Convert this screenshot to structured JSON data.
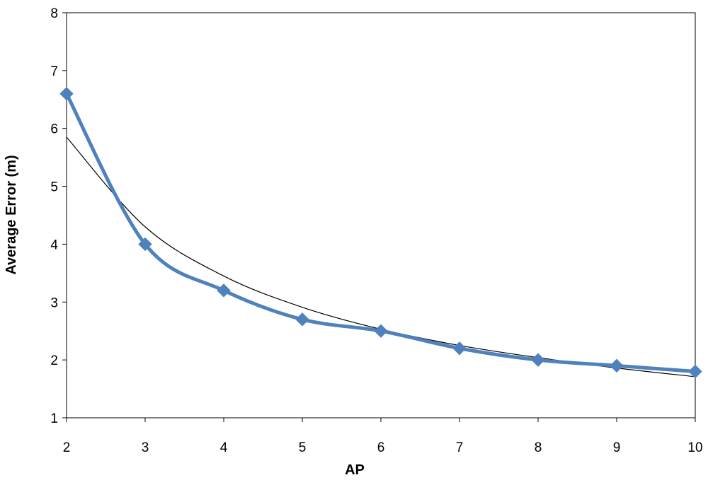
{
  "chart_data": {
    "type": "line",
    "title": "",
    "xlabel": "AP",
    "ylabel": "Average Error (m)",
    "xlim": [
      2,
      10
    ],
    "ylim": [
      1,
      8
    ],
    "x_ticks": [
      2,
      3,
      4,
      5,
      6,
      7,
      8,
      9,
      10
    ],
    "y_ticks": [
      1,
      2,
      3,
      4,
      5,
      6,
      7,
      8
    ],
    "grid": false,
    "legend": "none",
    "series": [
      {
        "x": [
          2,
          3,
          4,
          5,
          6,
          7,
          8,
          9,
          10
        ],
        "values": [
          6.6,
          4.0,
          3.2,
          2.7,
          2.5,
          2.2,
          2.0,
          1.9,
          1.8
        ],
        "color": "#4f81bd",
        "marker": "diamond",
        "smooth": true
      },
      {
        "trendline": "power",
        "x": [
          2,
          3,
          4,
          5,
          6,
          7,
          8,
          9,
          10
        ],
        "values": [
          5.85,
          4.3,
          3.45,
          2.91,
          2.53,
          2.25,
          2.04,
          1.86,
          1.71
        ],
        "color": "#000000",
        "marker": "none"
      }
    ]
  }
}
